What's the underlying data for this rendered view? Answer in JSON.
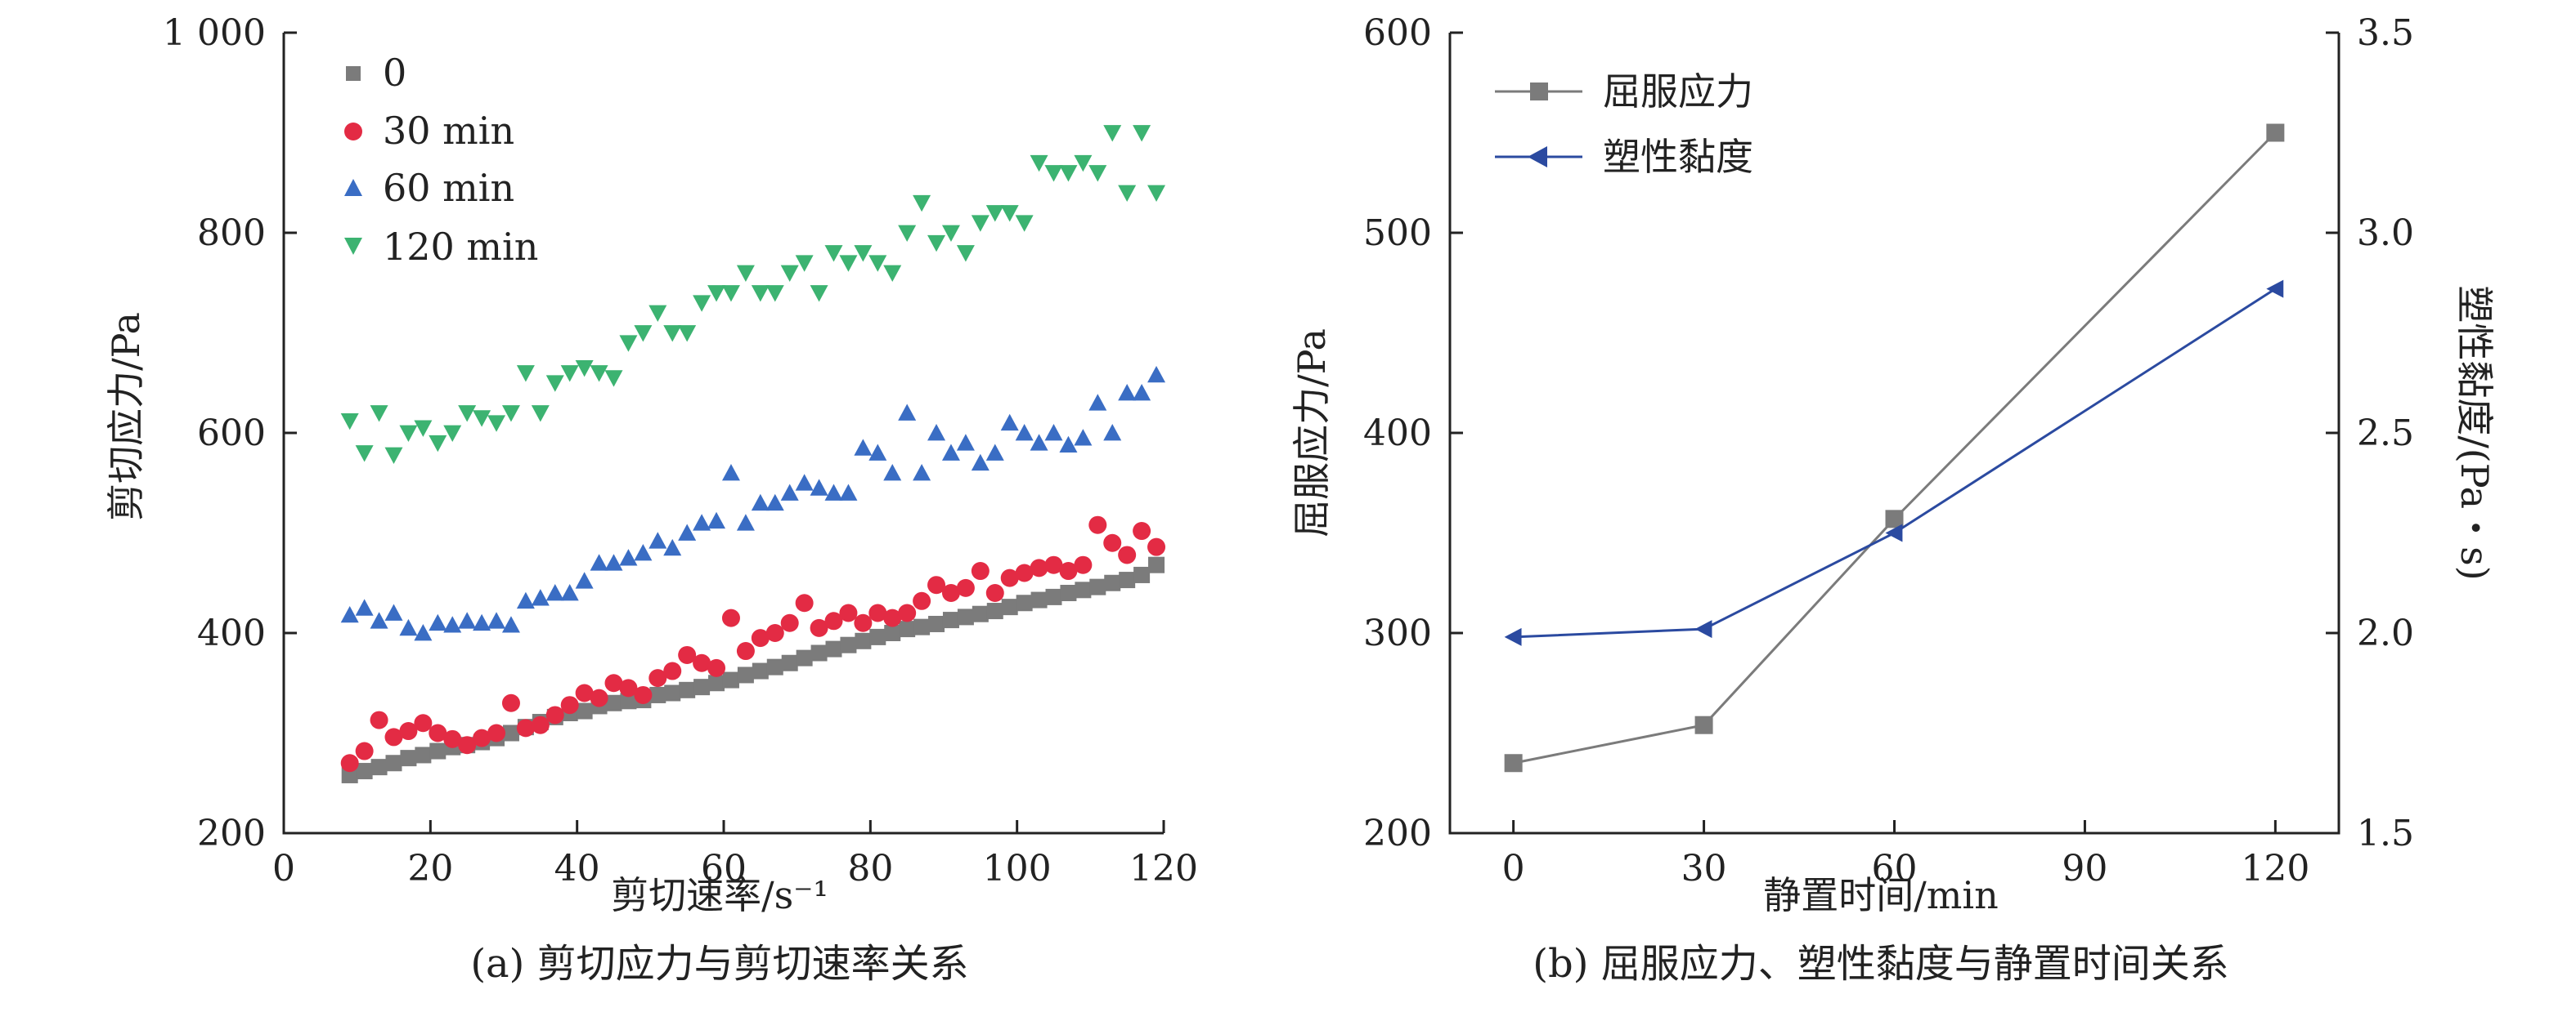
{
  "chart_data": [
    {
      "type": "scatter",
      "panel": "a",
      "caption": "(a) 剪切应力与剪切速率关系",
      "xlabel": "剪切速率/s⁻¹",
      "ylabel": "剪切应力/Pa",
      "xlim": [
        0,
        120
      ],
      "ylim": [
        200,
        1000
      ],
      "xticks": [
        "0",
        "20",
        "40",
        "60",
        "80",
        "100",
        "120"
      ],
      "yticks": [
        "200",
        "400",
        "600",
        "800",
        "1 000"
      ],
      "legend_position": "top-left",
      "grid": false,
      "x": [
        9,
        11,
        13,
        15,
        17,
        19,
        21,
        23,
        25,
        27,
        29,
        31,
        33,
        35,
        37,
        39,
        41,
        43,
        45,
        47,
        49,
        51,
        53,
        55,
        57,
        59,
        61,
        63,
        65,
        67,
        69,
        71,
        73,
        75,
        77,
        79,
        81,
        83,
        85,
        87,
        89,
        91,
        93,
        95,
        97,
        99,
        101,
        103,
        105,
        107,
        109,
        111,
        113,
        115,
        117,
        119
      ],
      "series": [
        {
          "name": "0",
          "color": "#7b7b7b",
          "marker": "square",
          "values": [
            258,
            262,
            266,
            270,
            275,
            278,
            282,
            286,
            288,
            291,
            295,
            300,
            306,
            311,
            316,
            320,
            322,
            327,
            330,
            332,
            333,
            338,
            340,
            343,
            346,
            350,
            353,
            358,
            362,
            366,
            370,
            375,
            380,
            384,
            388,
            392,
            396,
            400,
            404,
            406,
            409,
            413,
            416,
            419,
            422,
            426,
            430,
            433,
            436,
            440,
            443,
            446,
            450,
            453,
            458,
            468
          ]
        },
        {
          "name": "30 min",
          "color": "#e32b44",
          "marker": "circle",
          "values": [
            270,
            282,
            313,
            296,
            302,
            310,
            300,
            294,
            288,
            295,
            300,
            330,
            305,
            308,
            318,
            328,
            340,
            335,
            350,
            345,
            338,
            355,
            362,
            378,
            370,
            365,
            415,
            382,
            395,
            400,
            410,
            430,
            405,
            412,
            420,
            410,
            420,
            415,
            420,
            432,
            448,
            440,
            445,
            462,
            440,
            455,
            460,
            465,
            468,
            462,
            468,
            508,
            490,
            478,
            502,
            486
          ]
        },
        {
          "name": "60 min",
          "color": "#3a6dc4",
          "marker": "triangle-up",
          "values": [
            418,
            425,
            412,
            420,
            405,
            400,
            410,
            408,
            412,
            410,
            412,
            408,
            432,
            435,
            440,
            440,
            452,
            470,
            470,
            475,
            480,
            492,
            485,
            500,
            510,
            512,
            560,
            510,
            530,
            530,
            540,
            550,
            545,
            540,
            540,
            585,
            580,
            560,
            620,
            560,
            600,
            580,
            590,
            570,
            580,
            610,
            600,
            590,
            600,
            588,
            595,
            630,
            600,
            640,
            640,
            658
          ]
        },
        {
          "name": "120 min",
          "color": "#3cb371",
          "marker": "triangle-down",
          "values": [
            612,
            580,
            620,
            578,
            600,
            605,
            590,
            600,
            620,
            615,
            610,
            620,
            660,
            620,
            650,
            660,
            665,
            660,
            655,
            690,
            700,
            720,
            700,
            700,
            730,
            740,
            740,
            760,
            740,
            740,
            760,
            770,
            740,
            780,
            770,
            780,
            770,
            760,
            800,
            830,
            790,
            800,
            780,
            810,
            820,
            820,
            810,
            870,
            860,
            860,
            870,
            860,
            900,
            840,
            900,
            840
          ]
        }
      ]
    },
    {
      "type": "line",
      "panel": "b",
      "caption": "(b) 屈服应力、塑性黏度与静置时间关系",
      "xlabel": "静置时间/min",
      "ylabel_left": "屈服应力/Pa",
      "ylabel_right": "塑性黏度/(Pa・s)",
      "x": [
        0,
        30,
        60,
        120
      ],
      "xlim": [
        -10,
        130
      ],
      "ylim_left": [
        200,
        600
      ],
      "ylim_right": [
        1.5,
        3.5
      ],
      "xticks": [
        "0",
        "30",
        "60",
        "90",
        "120"
      ],
      "yticks_left": [
        "200",
        "300",
        "400",
        "500",
        "600"
      ],
      "yticks_right": [
        "1.5",
        "2.0",
        "2.5",
        "3.0",
        "3.5"
      ],
      "legend_position": "top-left",
      "grid": false,
      "series": [
        {
          "name": "屈服应力",
          "axis": "left",
          "color": "#7b7b7b",
          "marker": "square",
          "values": [
            235,
            254,
            357,
            550
          ]
        },
        {
          "name": "塑性黏度",
          "axis": "right",
          "color": "#2b4aa0",
          "marker": "triangle-left",
          "values": [
            1.99,
            2.01,
            2.25,
            2.86
          ]
        }
      ]
    }
  ]
}
